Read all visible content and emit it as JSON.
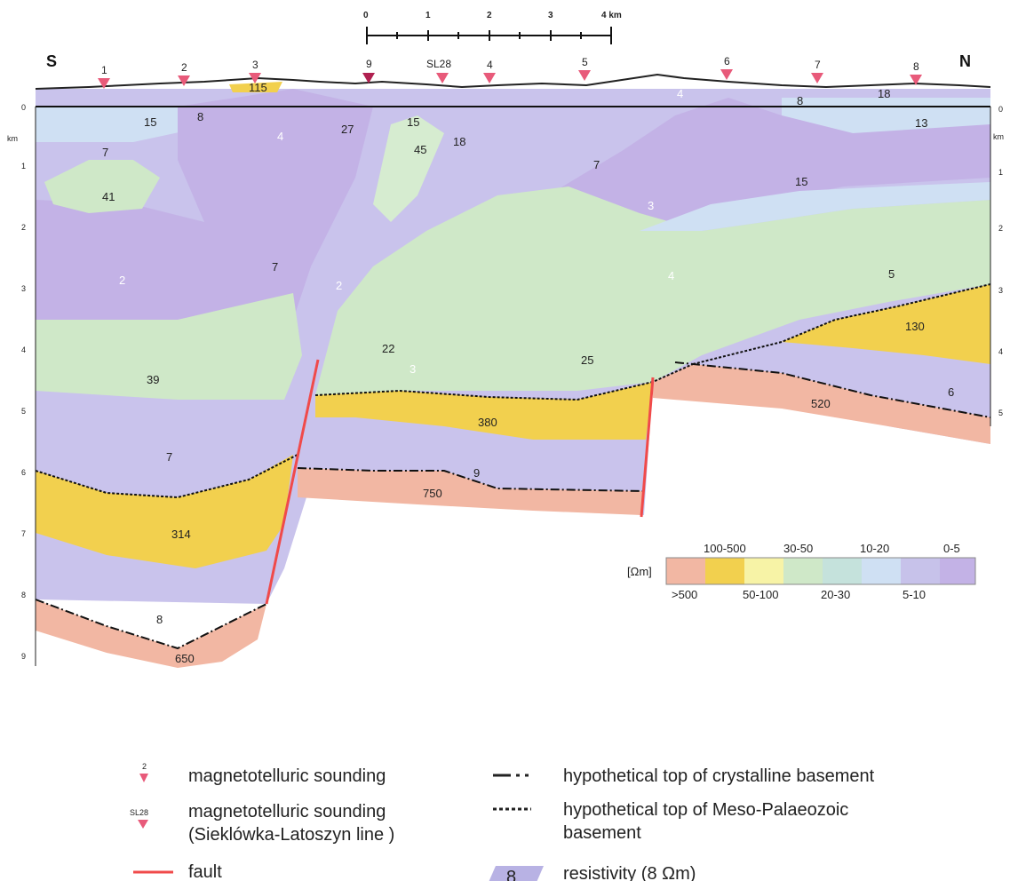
{
  "directions": {
    "south": "S",
    "north": "N"
  },
  "scale_bar": {
    "ticks": [
      "0",
      "1",
      "2",
      "3",
      "4 km"
    ]
  },
  "depth_axis": {
    "unit": "km",
    "ticks": [
      "0",
      "1",
      "2",
      "3",
      "4",
      "5",
      "6",
      "7",
      "8",
      "9"
    ]
  },
  "right_axis": {
    "ticks": [
      "0",
      "1",
      "2",
      "3",
      "4",
      "5"
    ]
  },
  "stations": [
    {
      "label": "1",
      "km": 1.0
    },
    {
      "label": "2",
      "km": 2.4
    },
    {
      "label": "3",
      "km": 3.6
    },
    {
      "label": "9",
      "km": 5.4
    },
    {
      "label": "SL28",
      "km": 6.6
    },
    {
      "label": "4",
      "km": 7.4
    },
    {
      "label": "5",
      "km": 9.0
    },
    {
      "label": "6",
      "km": 11.2
    },
    {
      "label": "7",
      "km": 12.6
    },
    {
      "label": "8",
      "km": 14.0
    }
  ],
  "resistivity_labels": [
    "115",
    "15",
    "8",
    "4",
    "27",
    "15",
    "45",
    "18",
    "7",
    "41",
    "2",
    "7",
    "2",
    "4",
    "3",
    "7",
    "15",
    "13",
    "8",
    "18",
    "4",
    "5",
    "3",
    "39",
    "22",
    "25",
    "130",
    "7",
    "380",
    "520",
    "6",
    "9",
    "750",
    "314",
    "8",
    "650"
  ],
  "color_scale": {
    "unit": "[Ωm]",
    "top_labels": [
      "100-500",
      "30-50",
      "10-20",
      "0-5"
    ],
    "bottom_labels": [
      ">500",
      "50-100",
      "20-30",
      "5-10"
    ],
    "colors": [
      "#f2b7a3",
      "#f2d04e",
      "#f7f3a6",
      "#cfe8c8",
      "#c5e2dc",
      "#cfe0f3",
      "#c7c2ea",
      "#c3b2e6"
    ]
  },
  "legend": {
    "mt_sounding_symbol": "2",
    "mt_sounding": "magnetotelluric sounding",
    "sl_symbol": "SL28",
    "sl_sounding_1": "magnetotelluric sounding",
    "sl_sounding_2": "(Sieklówka-Latoszyn line )",
    "fault": "fault",
    "crystalline": "hypothetical top of crystalline basement",
    "meso_1": "hypothetical top of Meso-Palaeozoic",
    "meso_2": "basement",
    "res_example_value": "8",
    "res_example": "resistivity  (8 Ωm)"
  },
  "colors": {
    "pink": "#f2b7a3",
    "yellow": "#f2d04e",
    "pale_green": "#cfe8c8",
    "light_blue": "#cfe0f3",
    "lavender": "#c7c2ea",
    "purple": "#c3b2e6",
    "fault": "#f04a4a",
    "marker": "#e85a7a"
  }
}
